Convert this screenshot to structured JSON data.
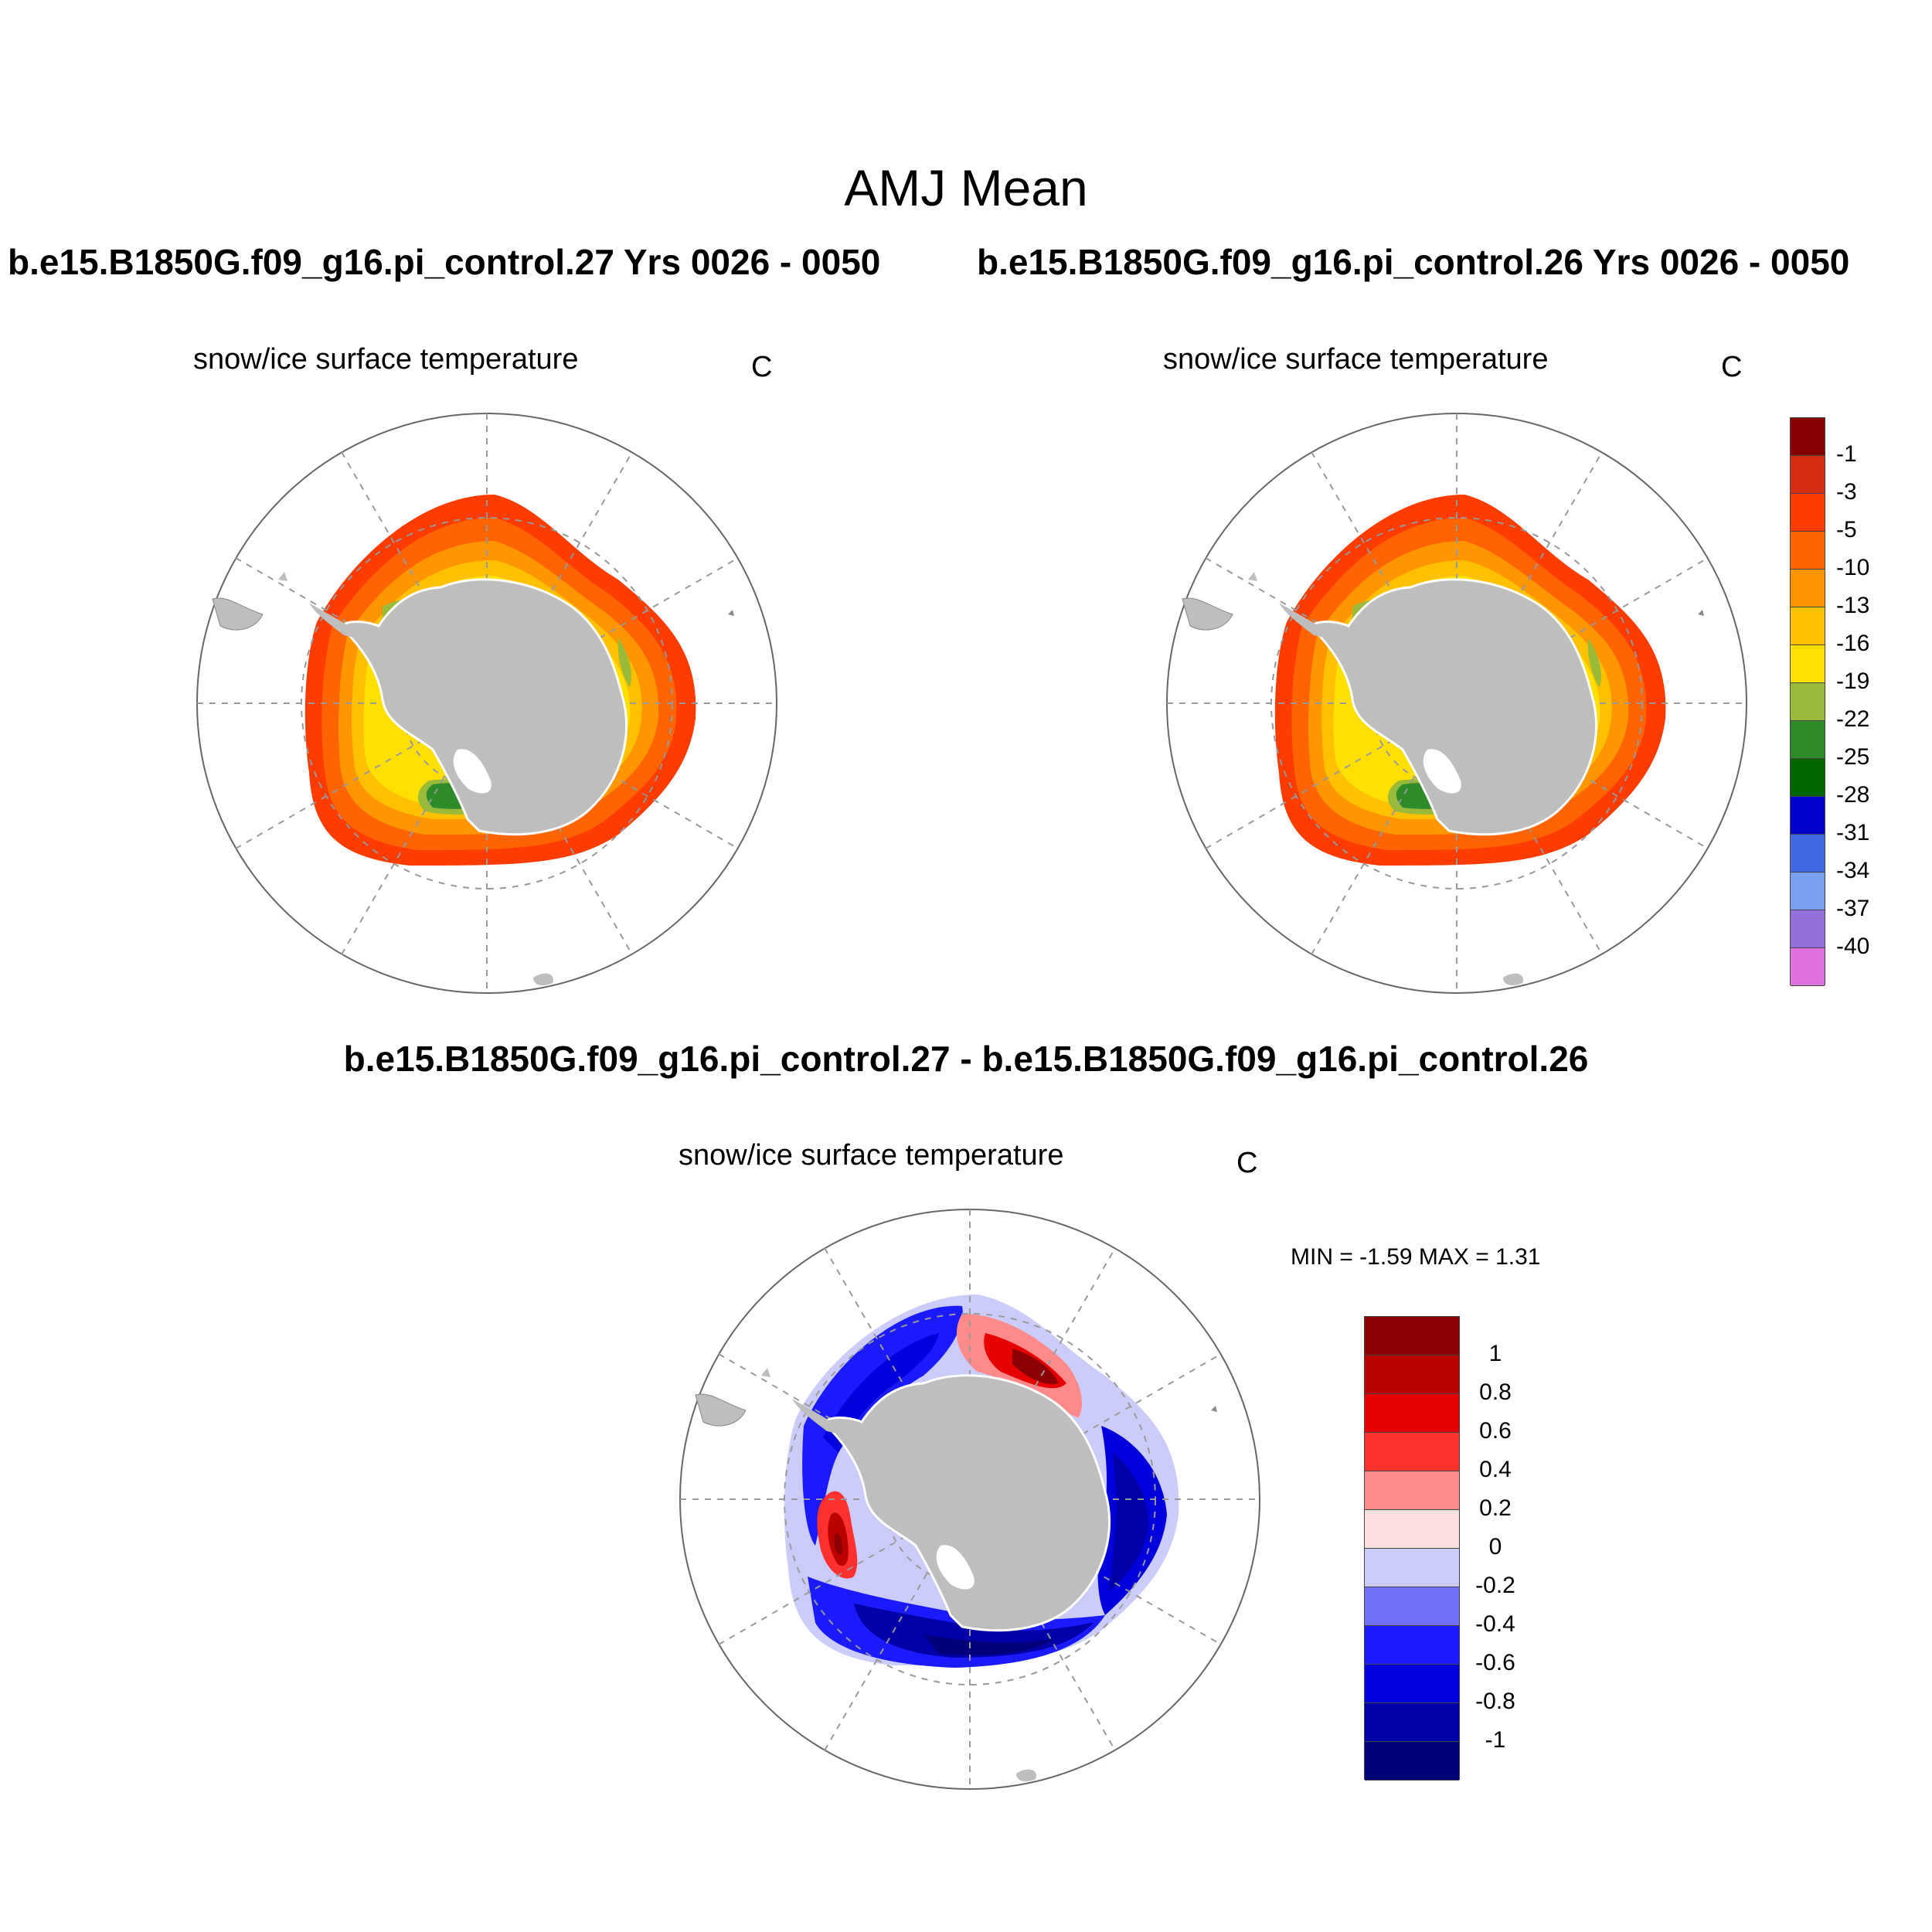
{
  "title": "AMJ Mean",
  "panels": {
    "left": {
      "case_title": "b.e15.B1850G.f09_g16.pi_control.27  Yrs 0026 - 0050",
      "variable": "snow/ice surface temperature",
      "units": "C"
    },
    "right": {
      "case_title": "b.e15.B1850G.f09_g16.pi_control.26  Yrs 0026 - 0050",
      "variable": "snow/ice surface temperature",
      "units": "C"
    },
    "diff": {
      "case_title": "b.e15.B1850G.f09_g16.pi_control.27 - b.e15.B1850G.f09_g16.pi_control.26",
      "variable": "snow/ice surface temperature",
      "units": "C",
      "minmax": "MIN =  -1.59 MAX =   1.31"
    }
  },
  "colorbar_main": {
    "labels": [
      "-1",
      "-3",
      "-5",
      "-10",
      "-13",
      "-16",
      "-19",
      "-22",
      "-25",
      "-28",
      "-31",
      "-34",
      "-37",
      "-40"
    ],
    "colors": [
      "#870000",
      "#d62c0f",
      "#ff3c00",
      "#ff6400",
      "#ff9600",
      "#ffc000",
      "#ffe000",
      "#9aba3a",
      "#2e8b2a",
      "#006400",
      "#0000c8",
      "#4169e1",
      "#7a9ef0",
      "#9370db",
      "#e070e0"
    ]
  },
  "colorbar_diff": {
    "labels": [
      "1",
      "0.8",
      "0.6",
      "0.4",
      "0.2",
      "0",
      "-0.2",
      "-0.4",
      "-0.6",
      "-0.8",
      "-1"
    ],
    "colors": [
      "#8b0000",
      "#bb0000",
      "#e60000",
      "#ff3030",
      "#ff8a8a",
      "#fde0e0",
      "#ccccfa",
      "#7070f8",
      "#1a1aff",
      "#0000dc",
      "#0000a8",
      "#000078"
    ]
  }
}
